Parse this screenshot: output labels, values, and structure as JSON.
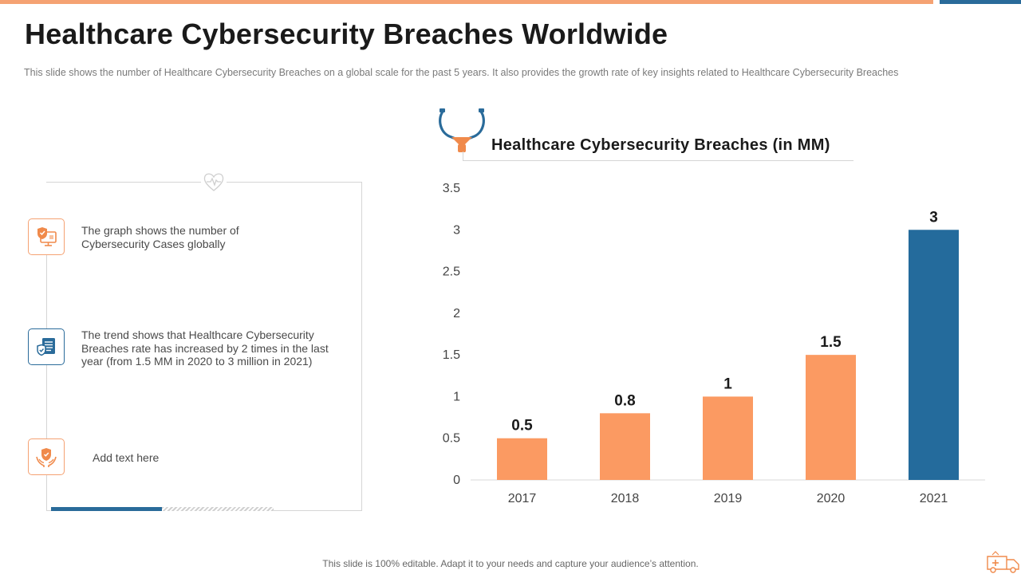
{
  "title": "Healthcare Cybersecurity Breaches Worldwide",
  "subtitle": "This slide shows the number of Healthcare Cybersecurity Breaches on a global scale for the past 5 years. It also provides the growth rate of key insights related to Healthcare Cybersecurity Breaches",
  "points": [
    {
      "icon": "computer-shield-icon",
      "text": "The graph shows the number of Cybersecurity Cases globally"
    },
    {
      "icon": "document-shield-icon",
      "text": "The trend shows that Healthcare Cybersecurity Breaches rate has increased by 2 times in the last year (from 1.5 MM in 2020 to 3 million in 2021)"
    },
    {
      "icon": "hands-shield-icon",
      "text": "Add text here"
    }
  ],
  "footer": "This slide is 100% editable. Adapt it to your needs and capture your audience’s attention.",
  "colors": {
    "orange": "#fb9a62",
    "blue": "#246b9c",
    "accent_bar": "#f5a273"
  },
  "chart_data": {
    "type": "bar",
    "title": "Healthcare Cybersecurity Breaches (in MM)",
    "categories": [
      "2017",
      "2018",
      "2019",
      "2020",
      "2021"
    ],
    "values": [
      0.5,
      0.8,
      1,
      1.5,
      3
    ],
    "data_labels": [
      "0.5",
      "0.8",
      "1",
      "1.5",
      "3"
    ],
    "bar_colors": [
      "#fb9a62",
      "#fb9a62",
      "#fb9a62",
      "#fb9a62",
      "#246b9c"
    ],
    "ylim": [
      0,
      3.5
    ],
    "yticks": [
      "0",
      "0.5",
      "1",
      "1.5",
      "2",
      "2.5",
      "3",
      "3.5"
    ],
    "xlabel": "",
    "ylabel": "",
    "grid": false,
    "legend": "none"
  }
}
